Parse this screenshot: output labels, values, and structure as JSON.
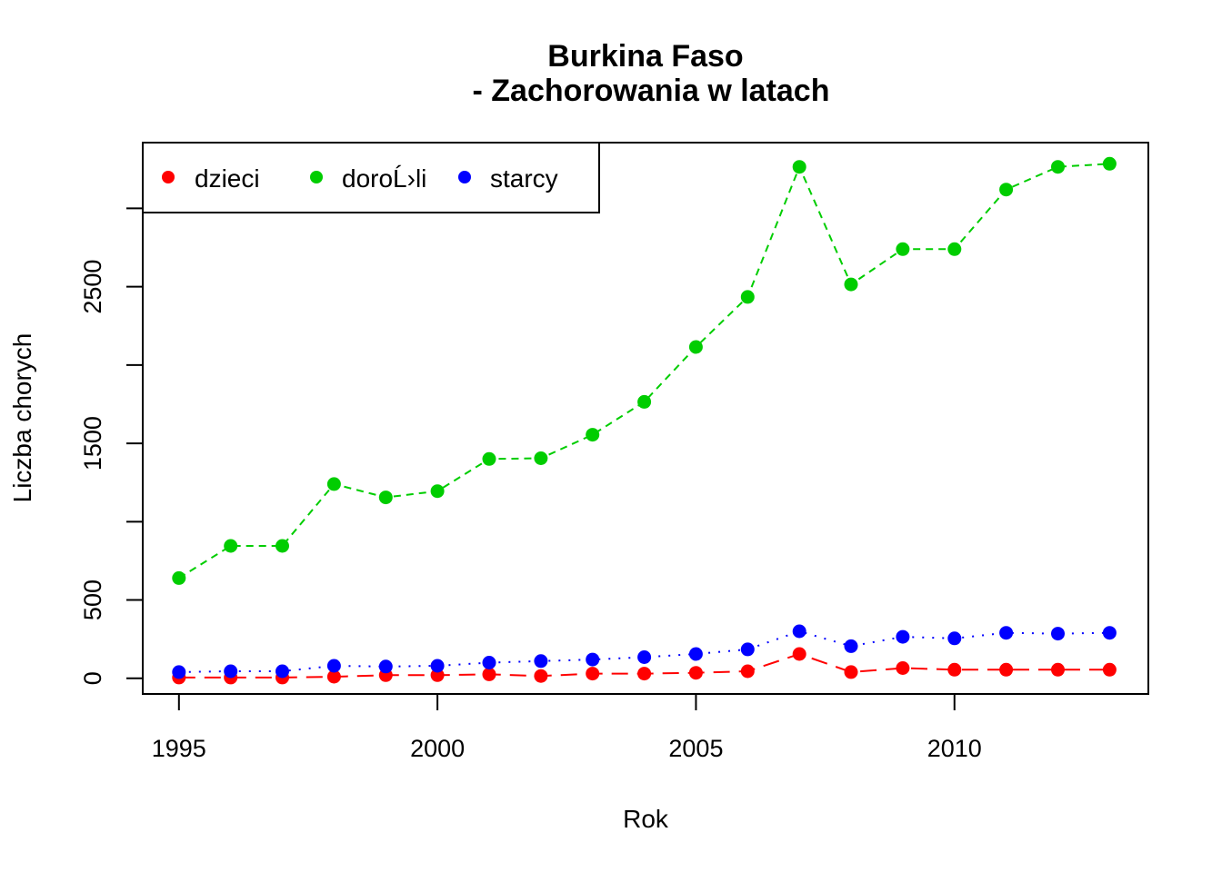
{
  "chart_data": {
    "type": "line",
    "title": [
      "Burkina Faso",
      "- Zachorowania w latach"
    ],
    "xlabel": "Rok",
    "ylabel": "Liczba chorych",
    "xlim": [
      1994.3,
      2013.75
    ],
    "ylim": [
      -100,
      3420
    ],
    "x_ticks": [
      1995,
      2000,
      2005,
      2010
    ],
    "y_ticks": [
      0,
      500,
      1000,
      1500,
      2000,
      2500,
      3000
    ],
    "y_tick_labels": [
      "0",
      "500",
      "",
      "1500",
      "",
      "2500",
      ""
    ],
    "grid": false,
    "legend": {
      "position": "top-left",
      "entries": [
        "dzieci",
        "doroĹ›li",
        "starcy"
      ]
    },
    "x": [
      1995,
      1996,
      1997,
      1998,
      1999,
      2000,
      2001,
      2002,
      2003,
      2004,
      2005,
      2006,
      2007,
      2008,
      2009,
      2010,
      2011,
      2012,
      2013
    ],
    "series": [
      {
        "name": "dzieci",
        "color": "#ff0000",
        "dash": "long",
        "values": [
          5,
          5,
          5,
          10,
          20,
          20,
          25,
          15,
          30,
          30,
          35,
          45,
          155,
          40,
          65,
          55,
          55,
          55,
          55
        ]
      },
      {
        "name": "doroĹ›li",
        "color": "#00cd00",
        "dash": "short",
        "values": [
          640,
          845,
          845,
          1240,
          1155,
          1195,
          1400,
          1405,
          1555,
          1765,
          2115,
          2435,
          3265,
          2515,
          2740,
          2740,
          3120,
          3265,
          3285
        ]
      },
      {
        "name": "starcy",
        "color": "#0000ff",
        "dash": "dotted",
        "values": [
          40,
          45,
          45,
          80,
          75,
          80,
          100,
          110,
          120,
          135,
          155,
          185,
          300,
          205,
          265,
          255,
          290,
          285,
          290
        ]
      }
    ]
  }
}
